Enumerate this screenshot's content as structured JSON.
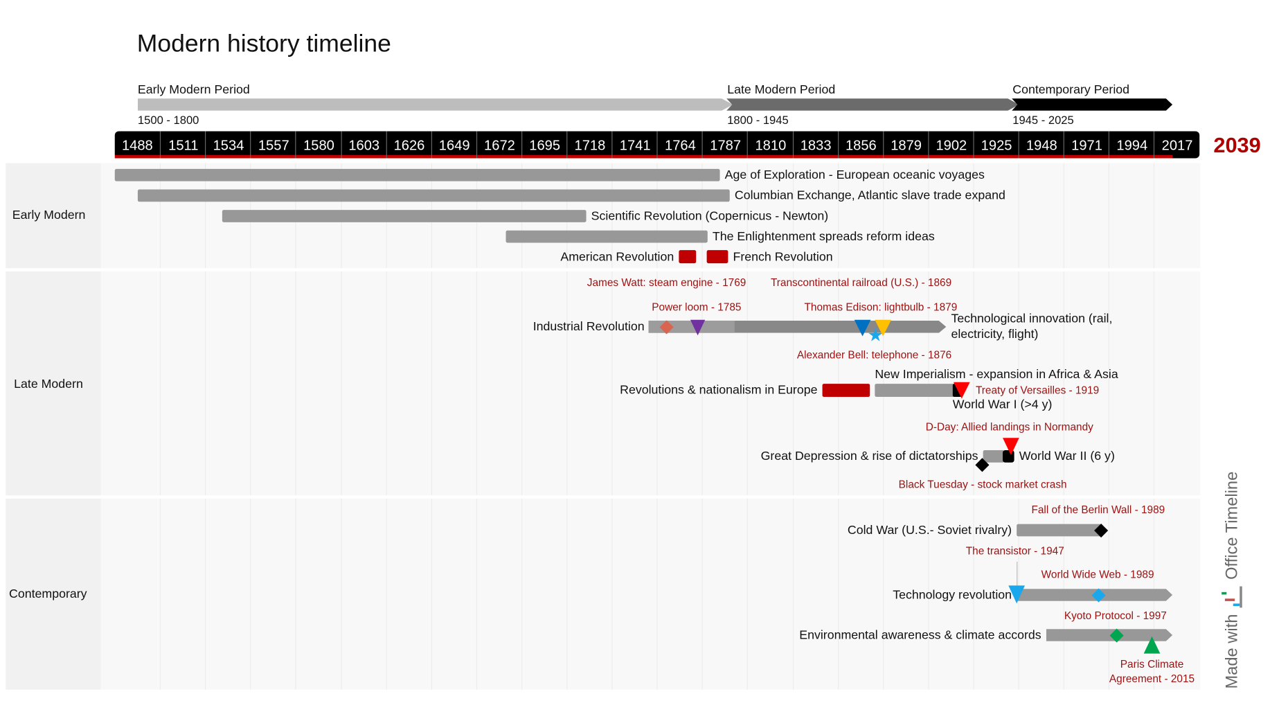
{
  "title": "Modern history timeline",
  "periods": [
    {
      "name": "Early Modern Period",
      "range": "1500 - 1800",
      "color": "#bdbdbd"
    },
    {
      "name": "Late Modern Period",
      "range": "1800 - 1945",
      "color": "#6b6b6b"
    },
    {
      "name": "Contemporary Period",
      "range": "1945 - 2025",
      "color": "#000000"
    }
  ],
  "axis": {
    "ticks": [
      "1488",
      "1511",
      "1534",
      "1557",
      "1580",
      "1603",
      "1626",
      "1649",
      "1672",
      "1695",
      "1718",
      "1741",
      "1764",
      "1787",
      "1810",
      "1833",
      "1856",
      "1879",
      "1902",
      "1925",
      "1948",
      "1971",
      "1994",
      "2017"
    ],
    "end_year": "2039",
    "accent": "#c00000"
  },
  "swimlanes": {
    "early": "Early Modern",
    "late": "Late Modern",
    "contemporary": "Contemporary"
  },
  "tasks": {
    "exploration": "Age of Exploration - European oceanic voyages",
    "columbian": "Columbian Exchange, Atlantic slave trade expand",
    "scientific": "Scientific Revolution (Copernicus - Newton)",
    "enlightenment": "The Enlightenment spreads reform ideas",
    "american": "American Revolution",
    "french": "French Revolution",
    "industrial": "Industrial Revolution",
    "tech_innovation_1": "Technological innovation (rail,",
    "tech_innovation_2": "electricity, flight)",
    "revolutions": "Revolutions & nationalism in Europe",
    "imperialism": "New Imperialism - expansion in Africa & Asia",
    "ww1": "World War I (>4 y)",
    "depression": "Great Depression & rise of dictatorships",
    "ww2": "World War II (6 y)",
    "coldwar": "Cold War (U.S.- Soviet rivalry)",
    "techrev": "Technology revolution",
    "environment": "Environmental awareness & climate accords"
  },
  "milestones": {
    "watt": "James Watt: steam engine - 1769",
    "railroad": "Transcontinental railroad (U.S.) - 1869",
    "loom": "Power loom - 1785",
    "edison": "Thomas Edison: lightbulb - 1879",
    "bell": "Alexander Bell: telephone - 1876",
    "versailles": "Treaty of Versailles - 1919",
    "dday": "D-Day: Allied landings in Normandy",
    "tuesday": "Black Tuesday - stock market crash",
    "berlin": "Fall of the Berlin Wall - 1989",
    "transistor": "The transistor - 1947",
    "www": "World Wide Web - 1989",
    "kyoto": "Kyoto Protocol - 1997",
    "paris_1": "Paris Climate",
    "paris_2": "Agreement - 2015"
  },
  "watermark": {
    "made_with": "Made with",
    "brand": "Office Timeline"
  }
}
